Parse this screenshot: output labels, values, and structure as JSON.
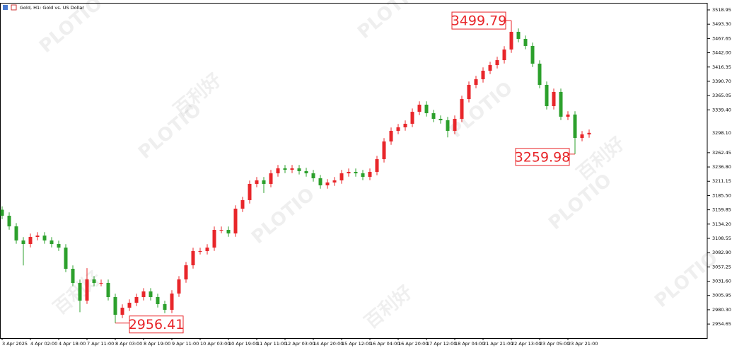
{
  "chart_data": {
    "type": "candlestick",
    "title": "Gold, H1:  Gold vs. US Dollar",
    "up_color": "#e8262a",
    "down_color": "#2ca02c",
    "categories": [
      "3 Apr 2025",
      null,
      null,
      null,
      "4 Apr 02:00",
      null,
      null,
      null,
      "4 Apr 18:00",
      null,
      null,
      null,
      "7 Apr 11:00",
      null,
      null,
      null,
      "8 Apr 03:00",
      null,
      null,
      null,
      "8 Apr 19:00",
      null,
      null,
      null,
      "9 Apr 11:00",
      null,
      null,
      null,
      "10 Apr 03:00",
      null,
      null,
      null,
      "10 Apr 19:00",
      null,
      null,
      null,
      "11 Apr 11:00",
      null,
      null,
      null,
      "12 Apr 03:00",
      null,
      null,
      null,
      "14 Apr 20:00",
      null,
      null,
      null,
      "15 Apr 12:00",
      null,
      null,
      null,
      "16 Apr 04:00",
      null,
      null,
      null,
      "16 Apr 20:00",
      null,
      null,
      null,
      "17 Apr 12:00",
      null,
      null,
      null,
      "18 Apr 04:00",
      null,
      null,
      null,
      "21 Apr 21:00",
      null,
      null,
      null,
      "22 Apr 13:00",
      null,
      null,
      null,
      "23 Apr 05:00",
      null,
      null,
      null,
      "23 Apr 21:00",
      null,
      null,
      null
    ],
    "open": [
      3160,
      3149.2,
      3130.1,
      3104.8,
      3098.4,
      3111.1,
      3113.6,
      3104.8,
      3098.4,
      3092.0,
      3053.9,
      3028.5,
      2996.7,
      3034.8,
      3028.5,
      3028.5,
      3003.1,
      2971.3,
      2984.0,
      2992.9,
      3003.1,
      3013.2,
      3003.1,
      2990.4,
      2980.2,
      3009.4,
      3034.8,
      3060.2,
      3085.7,
      3085.7,
      3092.0,
      3123.8,
      3123.8,
      3117.4,
      3161.9,
      3177.2,
      3206.4,
      3212.7,
      3206.4,
      3225.4,
      3234.3,
      3231.8,
      3234.3,
      3229.3,
      3225.4,
      3216.5,
      3203.8,
      3208.9,
      3212.7,
      3225.4,
      3228.0,
      3225.4,
      3219.1,
      3228.0,
      3250.8,
      3282.6,
      3301.7,
      3308.0,
      3314.4,
      3335.9,
      3348.7,
      3333.4,
      3323.3,
      3320.7,
      3301.7,
      3323.3,
      3358.8,
      3384.3,
      3394.4,
      3409.7,
      3419.8,
      3428.7,
      3447.8,
      3479.6,
      3466.9,
      3454.2,
      3422.4,
      3384.3,
      3346.1,
      3371.6,
      3327.1,
      3331.0,
      3289.0,
      3295.3
    ],
    "high": [
      3166,
      3155.2,
      3136.1,
      3110.8,
      3117.1,
      3119.6,
      3119.6,
      3110.8,
      3104.4,
      3098.0,
      3059.9,
      3034.5,
      3055.0,
      3040.8,
      3034.5,
      3034.5,
      3009.1,
      2990.0,
      2998.9,
      3009.1,
      3019.2,
      3019.2,
      3009.1,
      2996.4,
      3015.4,
      3040.8,
      3066.2,
      3091.7,
      3091.7,
      3098.0,
      3129.8,
      3129.8,
      3129.8,
      3167.9,
      3183.2,
      3212.4,
      3218.7,
      3218.7,
      3231.4,
      3240.3,
      3240.3,
      3240.3,
      3240.3,
      3235.3,
      3231.4,
      3222.5,
      3214.9,
      3218.7,
      3231.4,
      3234.0,
      3234.0,
      3231.4,
      3234.0,
      3256.8,
      3288.6,
      3307.7,
      3314.0,
      3320.4,
      3341.9,
      3354.7,
      3354.7,
      3339.4,
      3329.3,
      3326.7,
      3329.3,
      3364.8,
      3390.3,
      3400.4,
      3415.7,
      3425.8,
      3434.7,
      3453.8,
      3499.79,
      3485.6,
      3472.9,
      3460.2,
      3428.4,
      3390.3,
      3377.6,
      3377.6,
      3337.0,
      3337.0,
      3301.3,
      3304.1
    ],
    "low": [
      3143.2,
      3124.1,
      3098.8,
      3060.0,
      3092.4,
      3105.1,
      3098.8,
      3092.4,
      3086.0,
      3047.9,
      3022.5,
      2976.0,
      2990.7,
      3022.5,
      3022.5,
      2997.1,
      2956.41,
      2965.3,
      2978.0,
      2986.9,
      2997.1,
      2997.1,
      2984.4,
      2974.2,
      2974.2,
      3003.4,
      3028.8,
      3054.2,
      3079.7,
      3079.7,
      3086.0,
      3117.8,
      3111.4,
      3111.4,
      3155.9,
      3171.2,
      3200.4,
      3190.0,
      3200.4,
      3219.4,
      3225.8,
      3225.8,
      3223.3,
      3219.4,
      3210.5,
      3197.8,
      3197.8,
      3202.9,
      3206.7,
      3219.4,
      3219.4,
      3213.1,
      3213.1,
      3222.0,
      3244.8,
      3276.6,
      3295.7,
      3302.0,
      3308.4,
      3329.9,
      3327.4,
      3317.3,
      3314.7,
      3290.0,
      3295.7,
      3317.3,
      3352.8,
      3378.3,
      3388.4,
      3403.7,
      3413.8,
      3422.7,
      3441.8,
      3460.9,
      3448.2,
      3416.4,
      3378.3,
      3340.1,
      3340.1,
      3321.1,
      3321.1,
      3259.98,
      3283.0,
      3289.3
    ],
    "close": [
      3149.2,
      3130.1,
      3104.8,
      3098.4,
      3111.1,
      3113.6,
      3104.8,
      3098.4,
      3092.0,
      3053.9,
      3028.5,
      2996.7,
      3034.8,
      3028.5,
      3028.5,
      3003.1,
      2971.3,
      2984.0,
      2992.9,
      3003.1,
      3013.2,
      3003.1,
      2990.4,
      2980.2,
      3009.4,
      3034.8,
      3060.2,
      3085.7,
      3085.7,
      3092.0,
      3123.8,
      3123.8,
      3117.4,
      3161.9,
      3177.2,
      3206.4,
      3212.7,
      3206.4,
      3225.4,
      3234.3,
      3231.8,
      3234.3,
      3229.3,
      3225.4,
      3216.5,
      3203.8,
      3208.9,
      3212.7,
      3225.4,
      3228.0,
      3225.4,
      3219.1,
      3228.0,
      3250.8,
      3282.6,
      3301.7,
      3308.0,
      3314.4,
      3335.9,
      3348.7,
      3333.4,
      3323.3,
      3320.7,
      3301.7,
      3323.3,
      3358.8,
      3384.3,
      3394.4,
      3409.7,
      3419.8,
      3428.7,
      3447.8,
      3479.6,
      3466.9,
      3454.2,
      3422.4,
      3384.3,
      3346.1,
      3371.6,
      3327.1,
      3331.0,
      3289.0,
      3295.3,
      3298.1
    ],
    "ylim": [
      2929.39,
      3531.66
    ],
    "yticks": [
      3518.95,
      {
        "value": 3493.3,
        "label": "3493.30"
      },
      3467.65,
      {
        "value": 3442,
        "label": "3442.00"
      },
      3416.35,
      {
        "value": 3390.7,
        "label": "3390.70"
      },
      3365.05,
      {
        "value": 3339.4,
        "label": "3339.40"
      },
      3262.45,
      {
        "value": 3236.8,
        "label": "3236.80"
      },
      3211.15,
      {
        "value": 3185.5,
        "label": "3185.50"
      },
      3159.85,
      {
        "value": 3134.2,
        "label": "3134.20"
      },
      3108.55,
      {
        "value": 3082.9,
        "label": "3082.90"
      },
      3057.25,
      {
        "value": 3031.6,
        "label": "3031.60"
      },
      3005.95,
      {
        "value": 2980.3,
        "label": "2980.30"
      },
      2954.65
    ],
    "last_price": {
      "value": 3298.1,
      "label": "3298.10"
    },
    "annotations": [
      {
        "value": 3499.79,
        "label": "3499.79",
        "side": "left"
      },
      {
        "value": 3259.98,
        "label": "3259.98",
        "side": "left"
      },
      {
        "value": 2956.41,
        "label": "2956.41",
        "side": "right"
      }
    ]
  },
  "watermark": {
    "brand": "PLOTIO",
    "cn": "百利好"
  }
}
